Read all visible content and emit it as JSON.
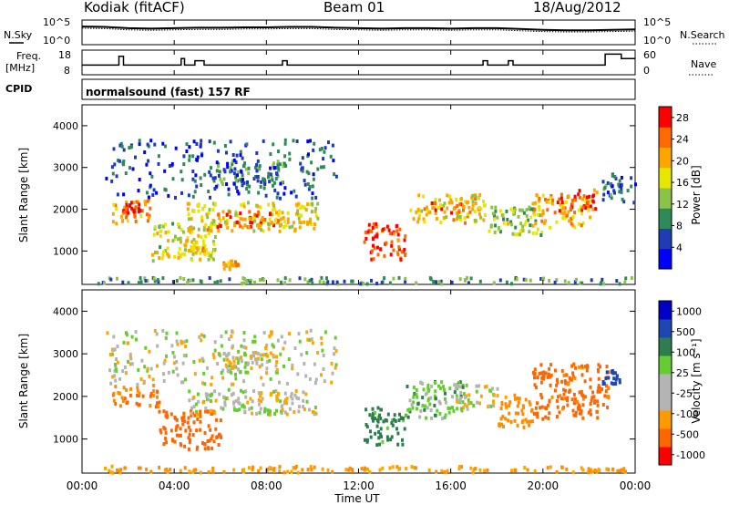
{
  "header": {
    "station": "Kodiak (fitACF)",
    "beam": "Beam 01",
    "date": "18/Aug/2012"
  },
  "sky_panel": {
    "left_label": "N.Sky",
    "right_label": "N.Search",
    "left_ticks": [
      "10^5",
      "10^0"
    ],
    "right_ticks": [
      "10^5",
      "10^0"
    ]
  },
  "freq_panel": {
    "left_label_line1": "Freq.",
    "left_label_line2": "[MHz]",
    "right_label": "Nave",
    "left_ticks": [
      "18",
      "8"
    ],
    "right_ticks": [
      "60",
      "0"
    ]
  },
  "cpid_panel": {
    "label": "CPID",
    "mode": "normalsound (fast) 157 RF"
  },
  "x_axis": {
    "label": "Time UT",
    "ticks": [
      "00:00",
      "04:00",
      "08:00",
      "12:00",
      "16:00",
      "20:00",
      "00:00"
    ]
  },
  "colors": {
    "power_scale": [
      "#0000ff",
      "#1f3cb4",
      "#2e8b57",
      "#8bc34a",
      "#e6e600",
      "#ffa500",
      "#ff6a00",
      "#ff0000"
    ],
    "velocity_scale": [
      "#0000c8",
      "#1e46b4",
      "#2e7d4f",
      "#66cc33",
      "#b4b4b4",
      "#b4b4b4",
      "#ff9900",
      "#ff6600",
      "#ff0000"
    ]
  },
  "chart_data": [
    {
      "type": "line",
      "panel": "sky-noise",
      "x_range_hours": [
        0,
        24
      ],
      "series": [
        {
          "name": "N.Sky",
          "x": [
            0,
            1,
            2,
            3,
            4,
            5,
            6,
            7,
            8,
            9,
            10,
            11,
            12,
            13,
            14,
            15,
            16,
            17,
            18,
            19,
            20,
            21,
            22,
            23,
            24
          ],
          "y_log10": [
            3.9,
            3.8,
            3.5,
            3.4,
            3.5,
            3.6,
            3.6,
            3.7,
            3.7,
            3.8,
            3.8,
            3.6,
            3.5,
            3.4,
            3.5,
            3.5,
            3.4,
            3.5,
            3.5,
            3.3,
            3.1,
            3.0,
            3.0,
            3.1,
            3.2
          ]
        },
        {
          "name": "N.Search",
          "x": [
            0,
            1,
            2,
            3,
            4,
            5,
            6,
            7,
            8,
            9,
            10,
            11,
            12,
            13,
            14,
            15,
            16,
            17,
            18,
            19,
            20,
            21,
            22,
            23,
            24
          ],
          "y_log10": [
            3.5,
            3.4,
            3.1,
            3.0,
            3.1,
            3.2,
            3.2,
            3.3,
            3.3,
            3.4,
            3.4,
            3.2,
            3.1,
            3.0,
            3.1,
            3.1,
            3.0,
            3.1,
            3.1,
            2.9,
            2.7,
            2.6,
            2.6,
            2.7,
            2.8
          ]
        }
      ]
    },
    {
      "type": "line",
      "panel": "frequency",
      "ylim": [
        8,
        18
      ],
      "x": [
        0,
        1.6,
        1.6,
        1.8,
        1.8,
        4.3,
        4.3,
        4.45,
        4.45,
        4.9,
        4.9,
        5.3,
        5.3,
        8.7,
        8.7,
        8.9,
        8.9,
        17.4,
        17.4,
        17.6,
        17.6,
        18.5,
        18.5,
        18.7,
        18.7,
        22.7,
        22.7,
        23.4,
        23.4,
        24
      ],
      "y": [
        12,
        12,
        16,
        16,
        12,
        12,
        15,
        15,
        12,
        12,
        14,
        14,
        12,
        12,
        14,
        14,
        12,
        12,
        14,
        14,
        12,
        12,
        14,
        14,
        12,
        12,
        17,
        17,
        15,
        15
      ]
    },
    {
      "type": "heatmap",
      "panel": "power",
      "xlabel": "",
      "ylabel": "Slant Range [km]",
      "x_range_hours": [
        0,
        24
      ],
      "ylim": [
        200,
        4500
      ],
      "y_ticks": [
        1000,
        2000,
        3000,
        4000
      ],
      "colorbar": {
        "label": "Power [dB]",
        "ticks": [
          4,
          8,
          12,
          16,
          20,
          24,
          28
        ],
        "range": [
          0,
          30
        ]
      },
      "bands": [
        {
          "t0": 1.3,
          "t1": 3.0,
          "r0": 1700,
          "r1": 2300,
          "value": 22
        },
        {
          "t0": 1.7,
          "t1": 2.5,
          "r0": 1950,
          "r1": 2200,
          "value": 28
        },
        {
          "t0": 3.0,
          "t1": 5.8,
          "r0": 800,
          "r1": 1700,
          "value": 16
        },
        {
          "t0": 4.3,
          "t1": 5.4,
          "r0": 900,
          "r1": 1300,
          "value": 20
        },
        {
          "t0": 4.5,
          "t1": 10.2,
          "r0": 1500,
          "r1": 2200,
          "value": 18
        },
        {
          "t0": 5.8,
          "t1": 8.5,
          "r0": 1600,
          "r1": 2000,
          "value": 24
        },
        {
          "t0": 6.0,
          "t1": 6.8,
          "r0": 600,
          "r1": 800,
          "value": 22
        },
        {
          "t0": 5.8,
          "t1": 8.8,
          "r0": 2600,
          "r1": 3200,
          "value": 10
        },
        {
          "t0": 12.2,
          "t1": 14.0,
          "r0": 800,
          "r1": 1700,
          "value": 27
        },
        {
          "t0": 14.2,
          "t1": 17.5,
          "r0": 1700,
          "r1": 2400,
          "value": 18
        },
        {
          "t0": 15.0,
          "t1": 16.8,
          "r0": 1950,
          "r1": 2250,
          "value": 24
        },
        {
          "t0": 17.5,
          "t1": 20.0,
          "r0": 1400,
          "r1": 2100,
          "value": 14
        },
        {
          "t0": 19.5,
          "t1": 22.0,
          "r0": 1600,
          "r1": 2400,
          "value": 20
        },
        {
          "t0": 20.5,
          "t1": 22.3,
          "r0": 2000,
          "r1": 2500,
          "value": 26
        },
        {
          "t0": 22.5,
          "t1": 24.0,
          "r0": 2200,
          "r1": 2900,
          "value": 8
        },
        {
          "t0": 0.5,
          "t1": 24.0,
          "r0": 250,
          "r1": 400,
          "value": 10
        },
        {
          "t0": 1.0,
          "t1": 11.0,
          "r0": 2300,
          "r1": 3700,
          "value": 6
        }
      ]
    },
    {
      "type": "heatmap",
      "panel": "velocity",
      "xlabel": "Time UT",
      "ylabel": "Slant Range [km]",
      "x_range_hours": [
        0,
        24
      ],
      "ylim": [
        200,
        4500
      ],
      "y_ticks": [
        1000,
        2000,
        3000,
        4000
      ],
      "colorbar": {
        "label": "Velocity [m s⁻¹]",
        "ticks": [
          1000,
          500,
          100,
          25,
          -25,
          -100,
          -500,
          -1000
        ]
      },
      "bands": [
        {
          "t0": 1.3,
          "t1": 3.3,
          "r0": 1800,
          "r1": 2300,
          "value": -300
        },
        {
          "t0": 3.3,
          "t1": 6.0,
          "r0": 800,
          "r1": 1700,
          "value": -400
        },
        {
          "t0": 4.5,
          "t1": 10.2,
          "r0": 1600,
          "r1": 2200,
          "value": 0
        },
        {
          "t0": 5.8,
          "t1": 8.5,
          "r0": 2600,
          "r1": 3100,
          "value": 0
        },
        {
          "t0": 12.2,
          "t1": 14.0,
          "r0": 900,
          "r1": 1800,
          "value": 150
        },
        {
          "t0": 14.0,
          "t1": 16.5,
          "r0": 1500,
          "r1": 2400,
          "value": 60
        },
        {
          "t0": 16.0,
          "t1": 18.0,
          "r0": 1700,
          "r1": 2300,
          "value": 0
        },
        {
          "t0": 18.0,
          "t1": 19.5,
          "r0": 1300,
          "r1": 2100,
          "value": -150
        },
        {
          "t0": 19.5,
          "t1": 22.8,
          "r0": 1500,
          "r1": 2800,
          "value": -350
        },
        {
          "t0": 22.5,
          "t1": 23.3,
          "r0": 2300,
          "r1": 2700,
          "value": 500
        },
        {
          "t0": 0.5,
          "t1": 24.0,
          "r0": 250,
          "r1": 400,
          "value": -100
        },
        {
          "t0": 1.0,
          "t1": 11.0,
          "r0": 2300,
          "r1": 3600,
          "value": 0
        }
      ]
    }
  ]
}
